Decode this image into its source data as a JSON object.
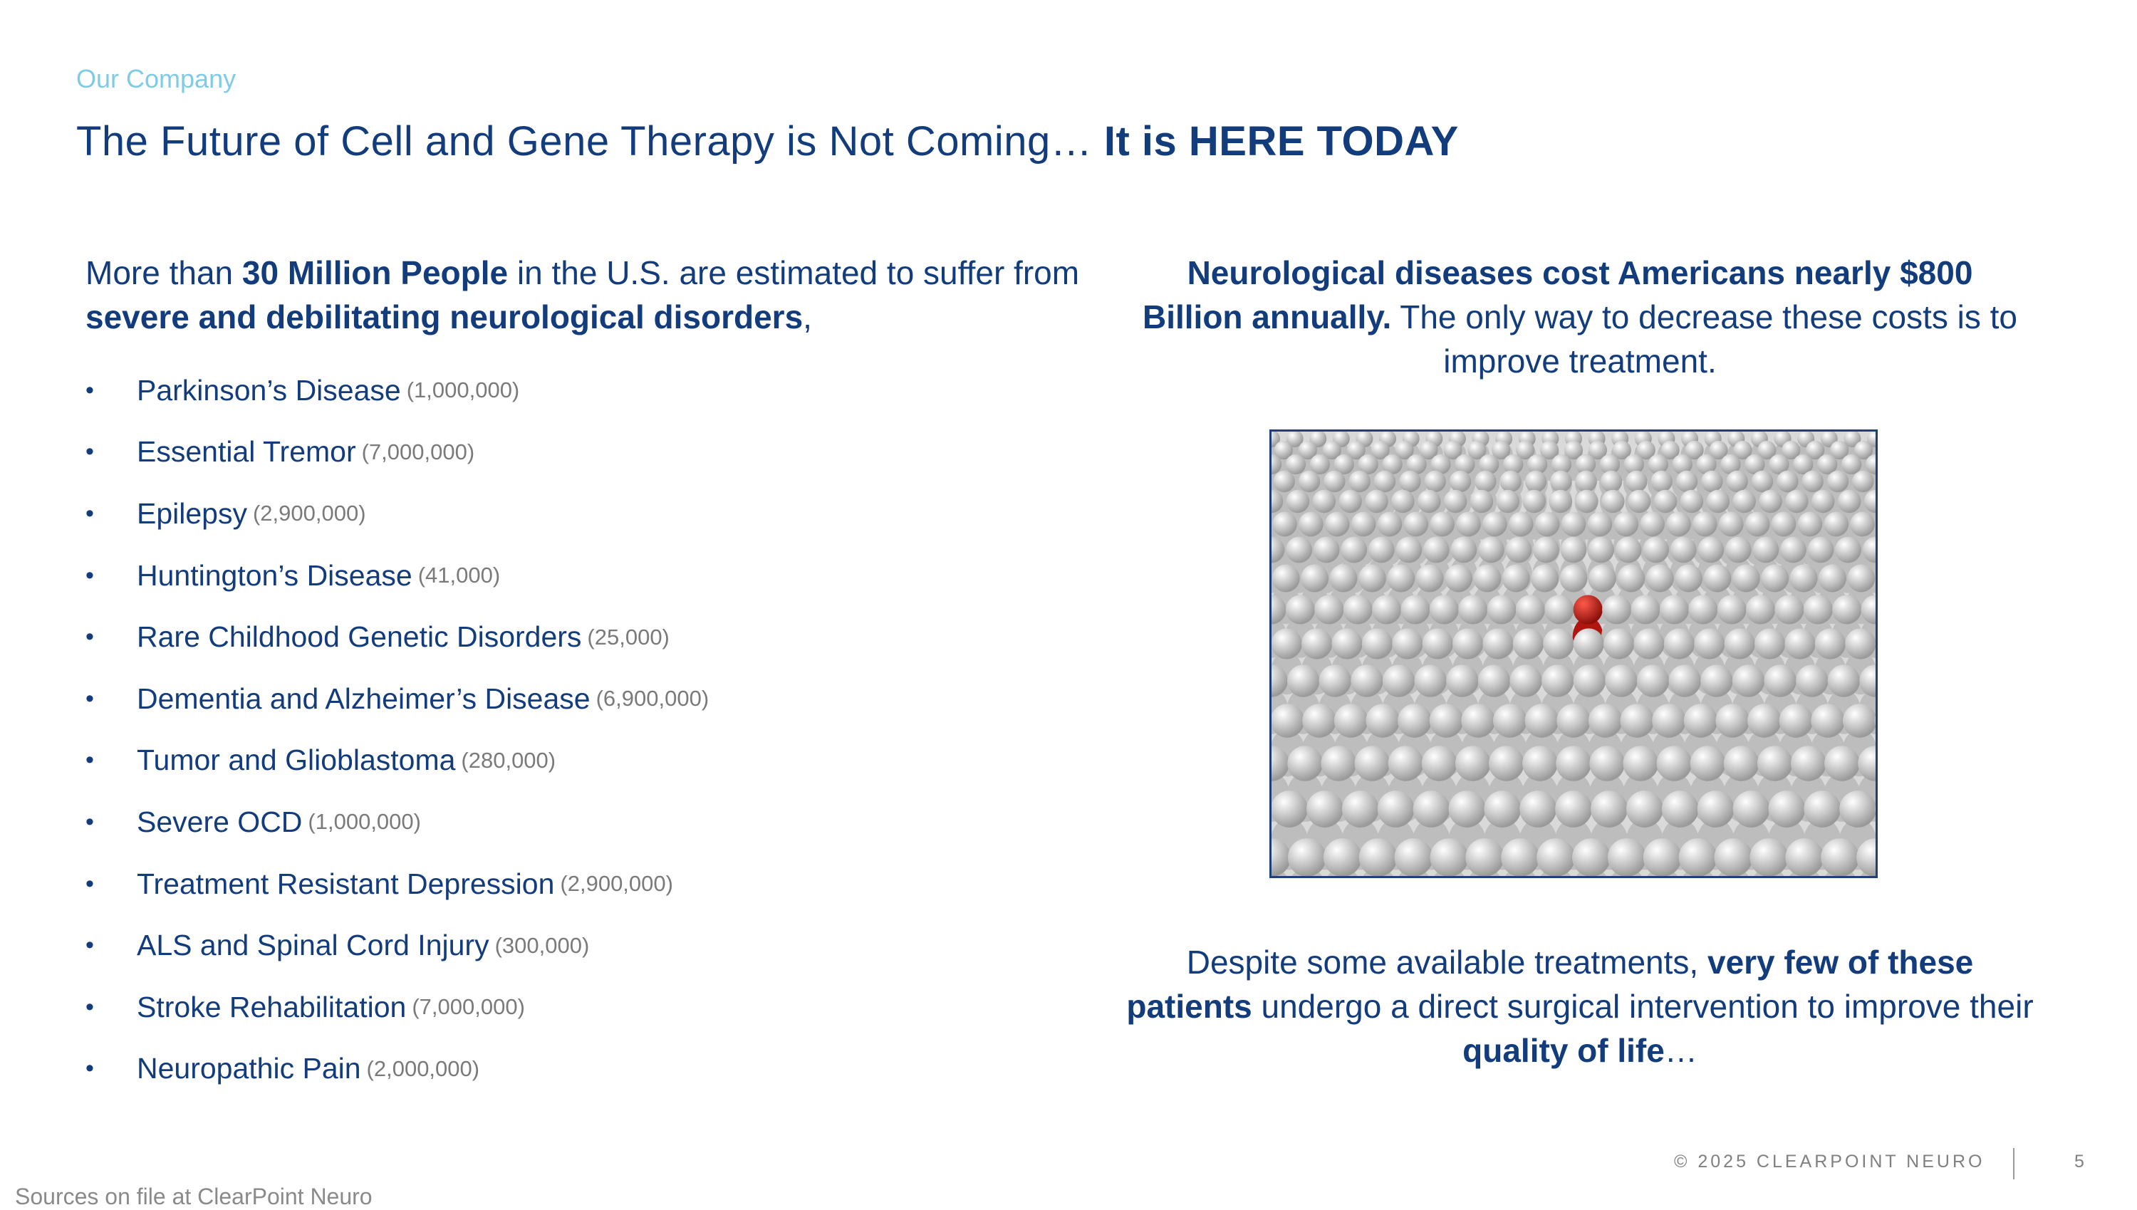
{
  "header": {
    "section": "Our Company",
    "title_regular": "The Future of Cell and Gene Therapy is Not Coming… ",
    "title_bold": "It is HERE TODAY"
  },
  "left": {
    "intro": [
      {
        "text": "More than ",
        "bold": false
      },
      {
        "text": "30 Million People",
        "bold": true
      },
      {
        "text": " in the U.S. are estimated to suffer from ",
        "bold": false
      },
      {
        "text": "severe and debilitating neurological disorders",
        "bold": true
      },
      {
        "text": ",",
        "bold": false
      }
    ],
    "conditions": [
      {
        "name": "Parkinson’s Disease",
        "count": "(1,000,000)"
      },
      {
        "name": "Essential Tremor",
        "count": "(7,000,000)"
      },
      {
        "name": "Epilepsy",
        "count": "(2,900,000)"
      },
      {
        "name": "Huntington’s Disease",
        "count": "(41,000)"
      },
      {
        "name": "Rare Childhood Genetic Disorders",
        "count": "(25,000)"
      },
      {
        "name": "Dementia and Alzheimer’s Disease",
        "count": "(6,900,000)"
      },
      {
        "name": "Tumor and Glioblastoma",
        "count": "(280,000)"
      },
      {
        "name": "Severe OCD",
        "count": "(1,000,000)"
      },
      {
        "name": "Treatment Resistant Depression",
        "count": "(2,900,000)"
      },
      {
        "name": "ALS and Spinal Cord Injury",
        "count": "(300,000)"
      },
      {
        "name": "Stroke Rehabilitation",
        "count": "(7,000,000)"
      },
      {
        "name": "Neuropathic Pain",
        "count": "(2,000,000)"
      }
    ]
  },
  "right": {
    "top": [
      {
        "text": "Neurological diseases cost Americans nearly $800 Billion annually.",
        "bold": true
      },
      {
        "text": " The only way to decrease these costs is to improve treatment.",
        "bold": false
      }
    ],
    "image": "crowd-with-red-figure",
    "bottom": [
      {
        "text": "Despite some available treatments, ",
        "bold": false
      },
      {
        "text": "very few of these patients",
        "bold": true
      },
      {
        "text": " undergo a direct surgical intervention to improve their ",
        "bold": false
      },
      {
        "text": "quality of life",
        "bold": true
      },
      {
        "text": "…",
        "bold": false
      }
    ]
  },
  "footer": {
    "copyright": "© 2025 CLEARPOINT NEURO",
    "page_number": "5",
    "sources": "Sources on file at ClearPoint Neuro"
  },
  "colors": {
    "primary": "#123c7c",
    "accent": "#7fcbe6",
    "muted": "#808080",
    "highlight": "#c0211a"
  }
}
